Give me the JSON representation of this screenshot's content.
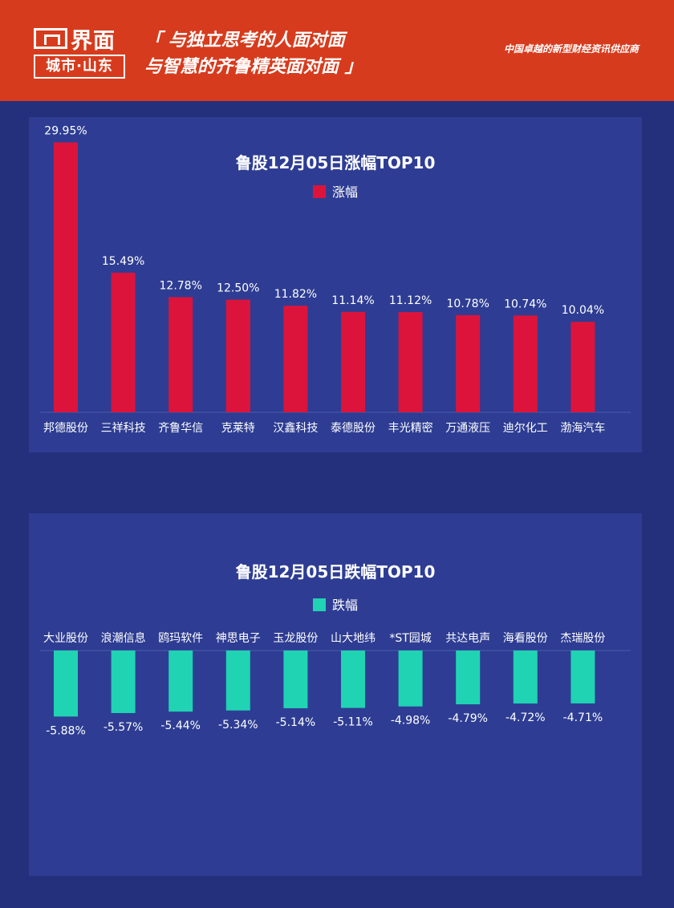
{
  "header": {
    "brand": "界面",
    "sub_brand": "城市·山东",
    "slogan_line1": "「 与独立思考的人面对面",
    "slogan_line2": "与智慧的齐鲁精英面对面 」",
    "provider": "中国卓越的新型财经资讯供应商"
  },
  "colors": {
    "header_bg": "#d73b1d",
    "page_bg": "#25307c",
    "panel_bg": "#2e3d93",
    "rise": "#dc143c",
    "fall": "#20d3b3"
  },
  "chart_data": [
    {
      "type": "bar",
      "title": "鲁股12月05日涨幅TOP10",
      "legend": "涨幅",
      "categories": [
        "邦德股份",
        "三祥科技",
        "齐鲁华信",
        "克莱特",
        "汉鑫科技",
        "泰德股份",
        "丰光精密",
        "万通液压",
        "迪尔化工",
        "渤海汽车"
      ],
      "values": [
        29.95,
        15.49,
        12.78,
        12.5,
        11.82,
        11.14,
        11.12,
        10.78,
        10.74,
        10.04
      ],
      "labels": [
        "29.95%",
        "15.49%",
        "12.78%",
        "12.50%",
        "11.82%",
        "11.14%",
        "11.12%",
        "10.78%",
        "10.74%",
        "10.04%"
      ],
      "ylim": [
        0,
        30
      ]
    },
    {
      "type": "bar",
      "title": "鲁股12月05日跌幅TOP10",
      "legend": "跌幅",
      "categories": [
        "大业股份",
        "浪潮信息",
        "鸥玛软件",
        "神思电子",
        "玉龙股份",
        "山大地纬",
        "*ST园城",
        "共达电声",
        "海看股份",
        "杰瑞股份"
      ],
      "values": [
        -5.88,
        -5.57,
        -5.44,
        -5.34,
        -5.14,
        -5.11,
        -4.98,
        -4.79,
        -4.72,
        -4.71
      ],
      "labels": [
        "-5.88%",
        "-5.57%",
        "-5.44%",
        "-5.34%",
        "-5.14%",
        "-5.11%",
        "-4.98%",
        "-4.79%",
        "-4.72%",
        "-4.71%"
      ],
      "ylim": [
        -6,
        0
      ]
    }
  ]
}
